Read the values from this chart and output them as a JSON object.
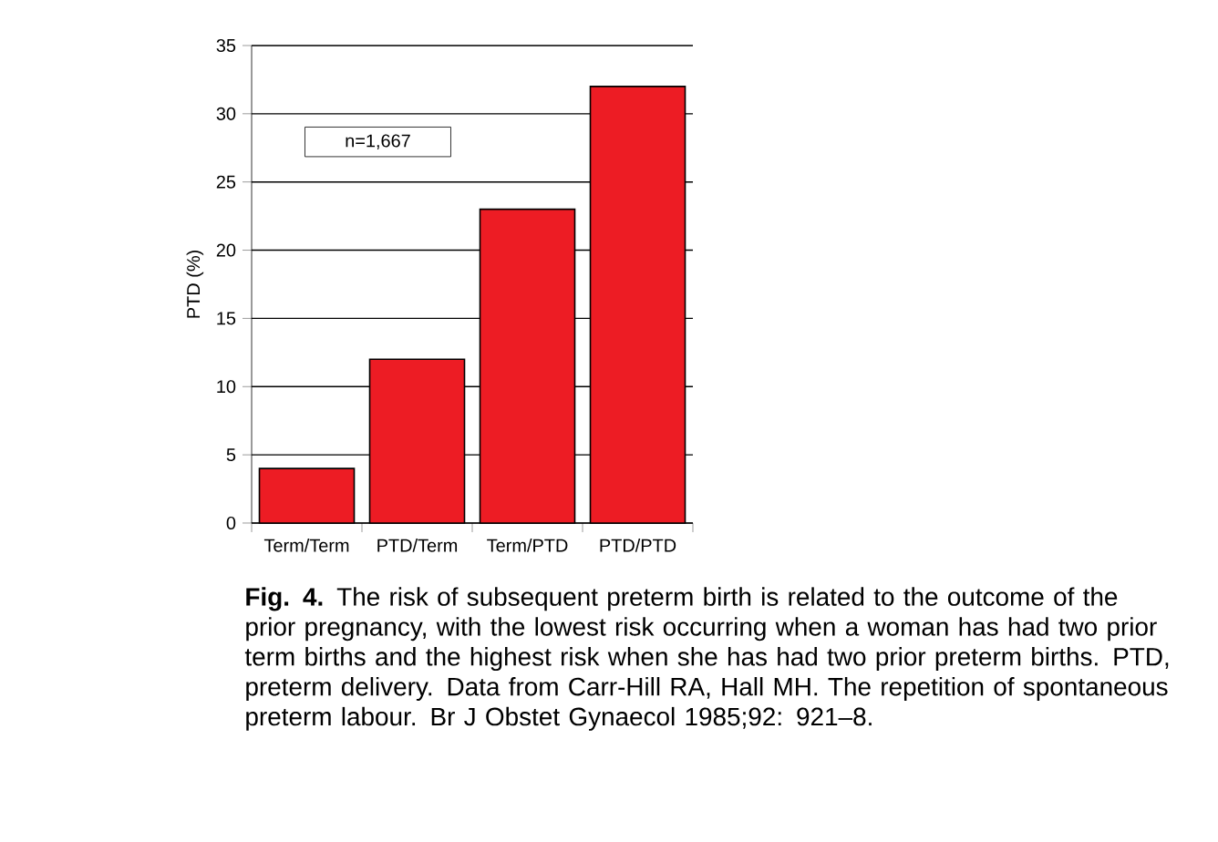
{
  "chart_data": {
    "type": "bar",
    "ylabel": "PTD (%)",
    "categories": [
      "Term/Term",
      "PTD/Term",
      "Term/PTD",
      "PTD/PTD"
    ],
    "values": [
      4,
      12,
      23,
      32
    ],
    "color": "#ed1c24",
    "ylim": [
      0,
      35
    ],
    "yticks": [
      0,
      5,
      10,
      15,
      20,
      25,
      30,
      35
    ],
    "grid": "y",
    "annotations": [
      "n=1,667",
      "**Fig. 4.** The risk of subsequent preterm birth is related to the outcome of the prior pregnancy, with the lowest risk occurring when a woman has had two prior term births and the highest risk when she has had two prior preterm births. PTD, preterm delivery. Data from Carr-Hill RA, Hall MH. The repetition of spontaneous preterm labour. Br J Obstet Gynaecol 1985;92: 921–8."
    ]
  }
}
